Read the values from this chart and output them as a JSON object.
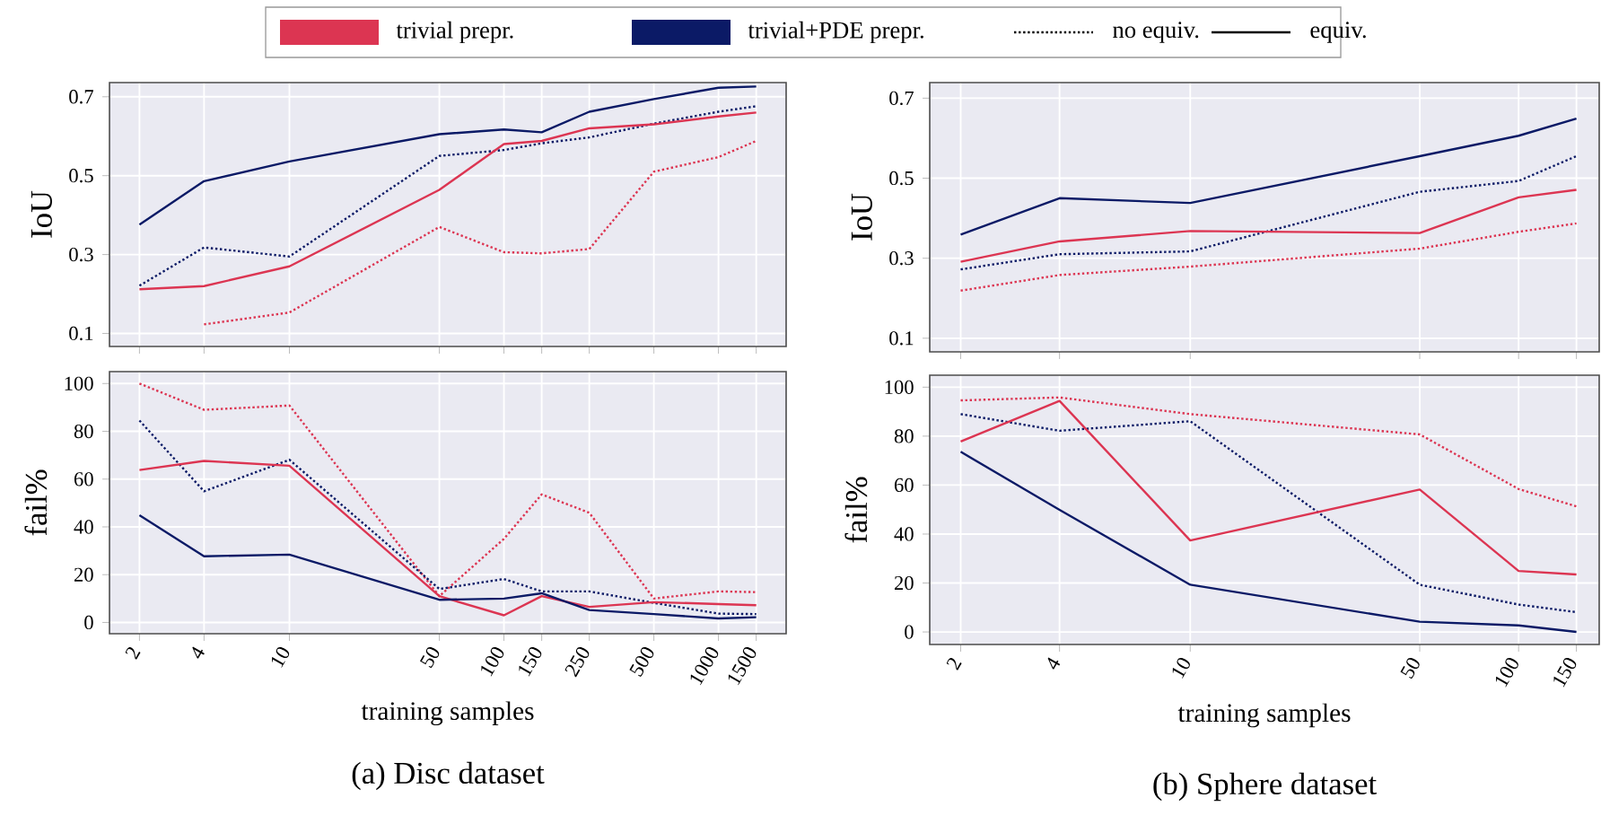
{
  "chart_data": [
    {
      "type": "line",
      "ylabel": "IoU",
      "log": "x",
      "grid": true,
      "tick_labels": "y",
      "legend": "top",
      "annotations": [
        "no equiv.",
        "equiv."
      ],
      "xlim": [
        1.45,
        2068
      ],
      "xticks": [
        2,
        4,
        10,
        50,
        100,
        150,
        250,
        500,
        1000,
        1500
      ],
      "ylim": [
        0.067,
        0.736
      ],
      "yticks": [
        0.1,
        0.3,
        0.5,
        0.7
      ],
      "x": [
        2,
        4,
        10,
        50,
        100,
        150,
        250,
        500,
        1000,
        1500
      ],
      "series": [
        {
          "color": "#dc3552",
          "line_style": "dotted",
          "values": [
            null,
            0.123,
            0.153,
            0.37,
            0.306,
            0.303,
            0.314,
            0.51,
            0.547,
            0.588
          ]
        },
        {
          "color": "#0b1a66",
          "line_style": "dotted",
          "values": [
            0.221,
            0.318,
            0.295,
            0.55,
            0.565,
            0.582,
            0.597,
            0.632,
            0.662,
            0.676
          ]
        },
        {
          "name": "trivial prepr.",
          "color": "#dc3552",
          "line_style": "solid",
          "values": [
            0.212,
            0.22,
            0.27,
            0.464,
            0.58,
            0.588,
            0.62,
            0.63,
            0.65,
            0.66
          ]
        },
        {
          "name": "trivial+PDE prepr.",
          "color": "#0b1a66",
          "line_style": "solid",
          "values": [
            0.376,
            0.486,
            0.536,
            0.605,
            0.617,
            0.61,
            0.662,
            0.694,
            0.723,
            0.726
          ]
        }
      ]
    },
    {
      "type": "line",
      "ylabel": "fail%",
      "xlabel": "training samples",
      "log": "x",
      "grid": true,
      "annotations": [
        "(a) Disc dataset"
      ],
      "xlim": [
        1.45,
        2068
      ],
      "xticks": [
        2,
        4,
        10,
        50,
        100,
        150,
        250,
        500,
        1000,
        1500
      ],
      "ylim": [
        -4.7,
        105
      ],
      "yticks": [
        0,
        20,
        40,
        60,
        80,
        100
      ],
      "x": [
        2,
        4,
        10,
        50,
        100,
        150,
        250,
        500,
        1000,
        1500
      ],
      "series": [
        {
          "color": "#dc3552",
          "line_style": "dotted",
          "values": [
            100,
            89,
            90.8,
            11,
            35,
            53.6,
            45.9,
            10,
            13,
            12.7
          ]
        },
        {
          "color": "#0b1a66",
          "line_style": "dotted",
          "values": [
            84.5,
            54.9,
            68.1,
            14,
            18.2,
            13,
            13,
            8.2,
            3.7,
            3.5
          ]
        },
        {
          "color": "#dc3552",
          "line_style": "solid",
          "values": [
            63.8,
            67.6,
            65.6,
            11,
            3,
            11,
            6.5,
            8.5,
            7.7,
            7.2
          ]
        },
        {
          "color": "#0b1a66",
          "line_style": "solid",
          "values": [
            44.9,
            27.7,
            28.4,
            9.5,
            10,
            12.2,
            5.2,
            3.5,
            1.7,
            2.2
          ]
        }
      ]
    },
    {
      "type": "line",
      "ylabel": "IoU",
      "log": "x",
      "grid": true,
      "tick_labels": "y",
      "xlim": [
        1.61,
        176
      ],
      "xticks": [
        2,
        4,
        10,
        50,
        100,
        150
      ],
      "ylim": [
        0.066,
        0.739
      ],
      "yticks": [
        0.1,
        0.3,
        0.5,
        0.7
      ],
      "x": [
        2,
        4,
        10,
        50,
        100,
        150
      ],
      "series": [
        {
          "color": "#dc3552",
          "line_style": "dotted",
          "values": [
            0.219,
            0.258,
            0.279,
            0.324,
            0.366,
            0.387
          ]
        },
        {
          "color": "#0b1a66",
          "line_style": "dotted",
          "values": [
            0.272,
            0.31,
            0.317,
            0.466,
            0.493,
            0.555
          ]
        },
        {
          "color": "#dc3552",
          "line_style": "solid",
          "values": [
            0.291,
            0.342,
            0.368,
            0.363,
            0.452,
            0.471
          ]
        },
        {
          "color": "#0b1a66",
          "line_style": "solid",
          "values": [
            0.359,
            0.45,
            0.438,
            0.555,
            0.606,
            0.649
          ]
        }
      ]
    },
    {
      "type": "line",
      "ylabel": "fail%",
      "xlabel": "training samples",
      "log": "x",
      "grid": true,
      "annotations": [
        "(b) Sphere dataset"
      ],
      "xlim": [
        1.61,
        176
      ],
      "xticks": [
        2,
        4,
        10,
        50,
        100,
        150
      ],
      "ylim": [
        -5.1,
        104.9
      ],
      "yticks": [
        0,
        20,
        40,
        60,
        80,
        100
      ],
      "x": [
        2,
        4,
        10,
        50,
        100,
        150
      ],
      "series": [
        {
          "color": "#dc3552",
          "line_style": "dotted",
          "values": [
            94.6,
            95.8,
            89,
            80.7,
            58.4,
            51.3
          ]
        },
        {
          "color": "#0b1a66",
          "line_style": "dotted",
          "values": [
            89,
            82.2,
            86.1,
            19.3,
            11.2,
            8.1
          ]
        },
        {
          "color": "#dc3552",
          "line_style": "solid",
          "values": [
            77.8,
            94.4,
            37.4,
            58.2,
            24.9,
            23.5
          ]
        },
        {
          "color": "#0b1a66",
          "line_style": "solid",
          "values": [
            73.6,
            49.9,
            19.3,
            4.2,
            2.7,
            0
          ]
        }
      ]
    }
  ]
}
